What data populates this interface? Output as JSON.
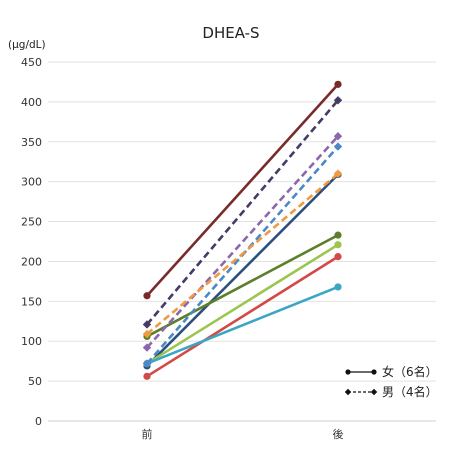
{
  "chart_data": {
    "type": "line",
    "title": "DHEA-S",
    "ylabel": "(μg/dL)",
    "xlabel": "",
    "categories": [
      "前",
      "後"
    ],
    "ylim": [
      0,
      450
    ],
    "yticks": [
      0,
      50,
      100,
      150,
      200,
      250,
      300,
      350,
      400,
      450
    ],
    "grid": "horizontal",
    "legend_position": "bottom-right",
    "legend": [
      {
        "label": "女（6名）",
        "style": "solid",
        "marker": "circle"
      },
      {
        "label": "男（4名）",
        "style": "dashed",
        "marker": "diamond"
      }
    ],
    "series": [
      {
        "group": "female",
        "color": "#7b2a2a",
        "values": [
          157,
          422
        ]
      },
      {
        "group": "female",
        "color": "#2b4f7e",
        "values": [
          69,
          309
        ]
      },
      {
        "group": "female",
        "color": "#5c7f2c",
        "values": [
          106,
          233
        ]
      },
      {
        "group": "female",
        "color": "#9cc54f",
        "values": [
          72,
          221
        ]
      },
      {
        "group": "female",
        "color": "#d24a48",
        "values": [
          56,
          206
        ]
      },
      {
        "group": "female",
        "color": "#3aa6c4",
        "values": [
          72,
          168
        ]
      },
      {
        "group": "male",
        "color": "#463a66",
        "values": [
          121,
          402
        ]
      },
      {
        "group": "male",
        "color": "#8c68ab",
        "values": [
          92,
          357
        ]
      },
      {
        "group": "male",
        "color": "#4a88c8",
        "values": [
          72,
          344
        ]
      },
      {
        "group": "male",
        "color": "#f19a3e",
        "values": [
          109,
          310
        ]
      }
    ]
  }
}
